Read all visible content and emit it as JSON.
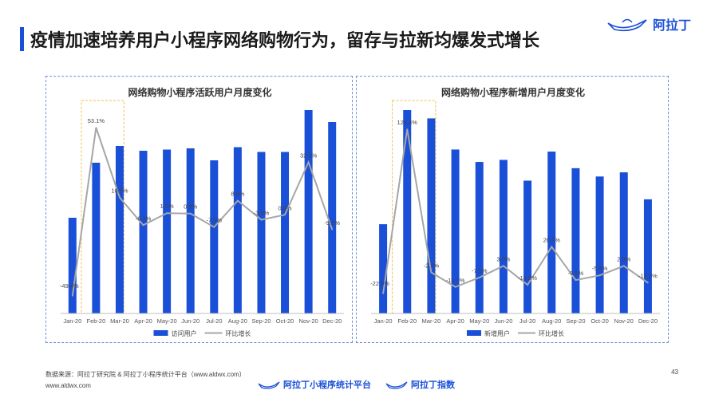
{
  "header": {
    "title": "疫情加速培养用户小程序网络购物行为，留存与拉新均爆发式增长",
    "brand": "阿拉丁"
  },
  "footer": {
    "source": "数据来源：阿拉丁研究院 & 阿拉丁小程序统计平台（www.aldwx.com）",
    "url": "www.aldwx.com",
    "page": "43",
    "brand1": "阿拉丁小程序统计平台",
    "brand2": "阿拉丁指数"
  },
  "colors": {
    "bar": "#1a4fd8",
    "line": "#a6a6a6",
    "accent": "#1a4fd8",
    "highlight": "#f2c04b"
  },
  "chart_data": [
    {
      "type": "bar",
      "title": "网络购物小程序活跃用户月度变化",
      "categories": [
        "Jan-20",
        "Feb-20",
        "Mar-20",
        "Apr-20",
        "May-20",
        "Jun-20",
        "Jul-20",
        "Aug-20",
        "Sep-20",
        "Oct-20",
        "Nov-20",
        "Dec-20"
      ],
      "series": [
        {
          "name": "访问用户",
          "type": "bar",
          "values": [
            40,
            63,
            70,
            68,
            68.5,
            69,
            64,
            69.5,
            67.5,
            67.5,
            85,
            80
          ]
        },
        {
          "name": "环比增长",
          "type": "line",
          "values": [
            -49.4,
            53.1,
            10.5,
            -6.3,
            1.0,
            0.8,
            -7.5,
            8.6,
            -3.0,
            0.0,
            32.0,
            -9.0
          ]
        }
      ],
      "labels": [
        "-49.4%",
        "53.1%",
        "10.5%",
        "-6.3%",
        "1.0%",
        "0.8%",
        "-7.5%",
        "8.6%",
        "-3.0%",
        "0.0%",
        "32.0%",
        "-9.0%"
      ],
      "highlight_category": "Feb-20"
    },
    {
      "type": "bar",
      "title": "网络购物小程序新增用户月度变化",
      "categories": [
        "Jan-20",
        "Feb-20",
        "Mar-20",
        "Apr-20",
        "May-20",
        "Jun-20",
        "Jul-20",
        "Aug-20",
        "Sep-20",
        "Oct-20",
        "Nov-20",
        "Dec-20"
      ],
      "series": [
        {
          "name": "新增用户",
          "type": "bar",
          "values": [
            43,
            98,
            94,
            79,
            73,
            74,
            64,
            78,
            70,
            66,
            68,
            55
          ]
        },
        {
          "name": "环比增长",
          "type": "line",
          "values": [
            -22.0,
            126.4,
            -2.9,
            -16.1,
            -7.5,
            3.0,
            -14.2,
            20.2,
            -9.9,
            -5.6,
            2.9,
            -12.3
          ]
        }
      ],
      "labels": [
        "-22.0%",
        "126.4%",
        "-2.9%",
        "-16.1%",
        "-7.5%",
        "3.0%",
        "-14.2%",
        "20.2%",
        "-9.9%",
        "-5.6%",
        "2.9%",
        "-12.3%"
      ],
      "highlight_category": "Feb-20"
    }
  ]
}
